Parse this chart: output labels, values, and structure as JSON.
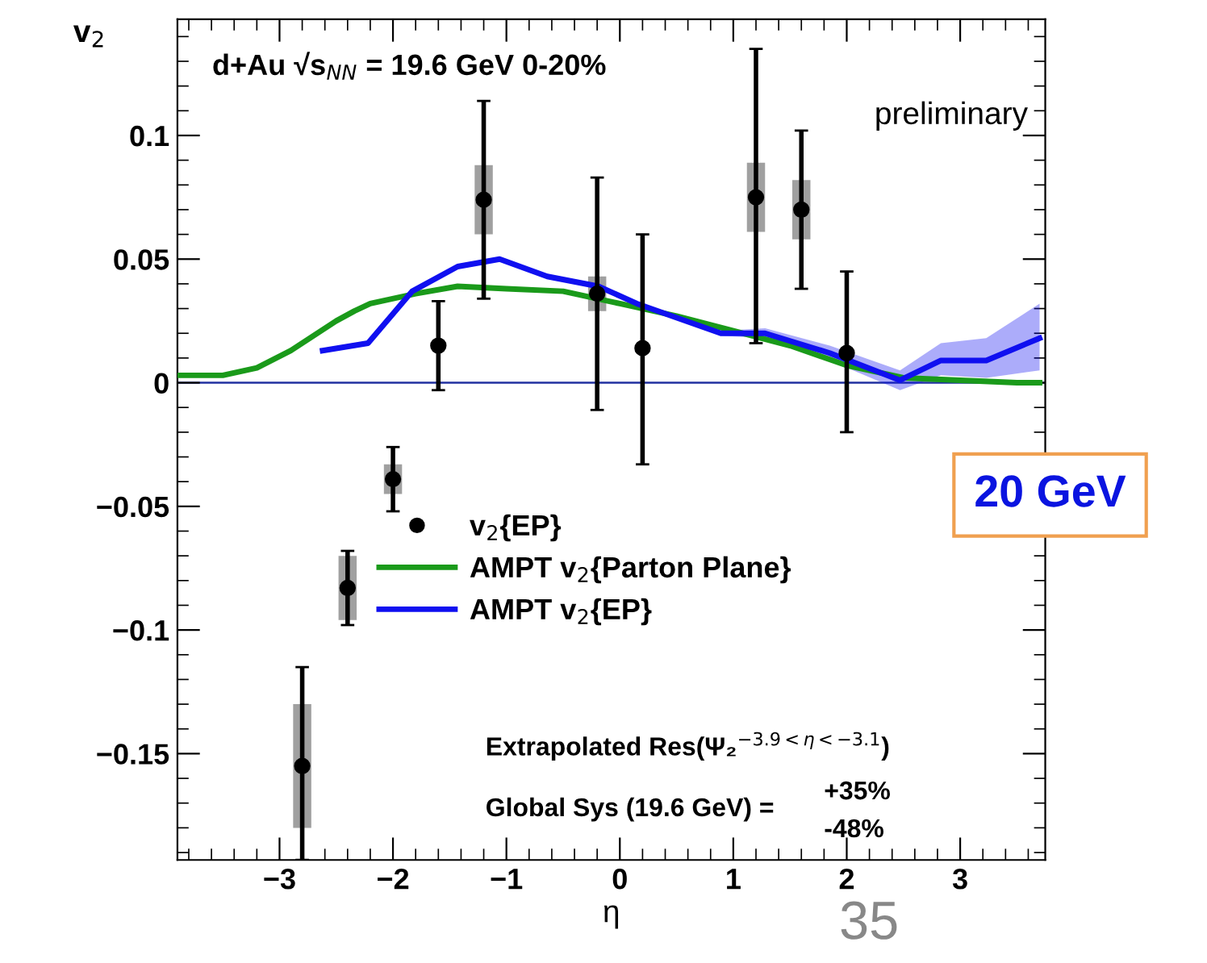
{
  "chart_data": {
    "type": "scatter",
    "title": "d+Au √s$_{NN}$ = 19.6 GeV 0-20%",
    "xlabel": "η",
    "ylabel": "v$_{2}$",
    "xlim": [
      -3.9,
      3.75
    ],
    "ylim": [
      -0.193,
      0.147
    ],
    "xticks": [
      {
        "value": -3,
        "label": "−3"
      },
      {
        "value": -2,
        "label": "−2"
      },
      {
        "value": -1,
        "label": "−1"
      },
      0,
      1,
      2,
      3
    ],
    "yticks": [
      {
        "value": -0.15,
        "label": "−0.15"
      },
      {
        "value": -0.1,
        "label": "−0.1"
      },
      {
        "value": -0.05,
        "label": "−0.05"
      },
      0,
      0.05,
      0.1
    ],
    "series": [
      {
        "type": "bar",
        "color": "#a0a0a0",
        "x": [
          -2.8,
          -2.4,
          -2.0,
          -1.2,
          -0.2,
          1.2,
          1.6
        ],
        "base": [
          -0.18,
          -0.096,
          -0.045,
          0.06,
          0.029,
          0.061,
          0.058
        ],
        "values": [
          0.05,
          0.026,
          0.012,
          0.028,
          0.014,
          0.028,
          0.024
        ]
      },
      {
        "type": "line",
        "name": "AMPT v$_{2}${Parton Plane}",
        "color": "#1a9a1a",
        "x": [
          -3.9,
          -3.5,
          -3.2,
          -2.9,
          -2.5,
          -2.34,
          -2.2,
          -1.8,
          -1.43,
          -1.0,
          -0.5,
          0,
          0.5,
          1.0,
          1.5,
          2.0,
          2.5,
          3.0,
          3.5,
          3.7
        ],
        "values": [
          0.003,
          0.003,
          0.006,
          0.013,
          0.025,
          0.029,
          0.032,
          0.036,
          0.039,
          0.038,
          0.037,
          0.032,
          0.027,
          0.021,
          0.015,
          0.007,
          0.002,
          0.001,
          0.0,
          0.0
        ]
      },
      {
        "type": "line",
        "name": "AMPT v$_{2}${EP}",
        "color": "#1010f0",
        "x": [
          -2.62,
          -2.22,
          -1.83,
          -1.43,
          -1.06,
          -0.64,
          -0.19,
          0.15,
          0.89,
          1.28,
          1.85,
          2.47,
          2.83,
          3.23,
          3.7
        ],
        "values": [
          0.013,
          0.016,
          0.037,
          0.047,
          0.05,
          0.043,
          0.039,
          0.032,
          0.02,
          0.02,
          0.012,
          0.001,
          0.009,
          0.009,
          0.018
        ],
        "lower": [
          0.012,
          0.015,
          0.036,
          0.046,
          0.049,
          0.042,
          0.038,
          0.031,
          0.019,
          0.018,
          0.009,
          -0.003,
          0.003,
          0.002,
          0.005
        ],
        "upper": [
          0.014,
          0.017,
          0.038,
          0.048,
          0.051,
          0.044,
          0.04,
          0.033,
          0.021,
          0.022,
          0.015,
          0.005,
          0.016,
          0.018,
          0.032
        ]
      },
      {
        "name": "v$_{2}${EP}",
        "marker": "circle",
        "color": "#000000",
        "x": [
          -2.8,
          -2.4,
          -2.0,
          -1.6,
          -1.2,
          -0.2,
          0.2,
          1.2,
          1.6,
          2.0
        ],
        "values": [
          -0.155,
          -0.083,
          -0.039,
          0.015,
          0.074,
          0.036,
          0.014,
          0.075,
          0.07,
          0.012
        ],
        "errors": [
          [
            -0.193,
            -0.115
          ],
          [
            -0.098,
            -0.068
          ],
          [
            -0.052,
            -0.026
          ],
          [
            -0.003,
            0.033
          ],
          [
            0.034,
            0.114
          ],
          [
            -0.011,
            0.083
          ],
          [
            -0.033,
            0.06
          ],
          [
            0.016,
            0.135
          ],
          [
            0.038,
            0.102
          ],
          [
            -0.02,
            0.045
          ]
        ]
      }
    ],
    "ref_lines": [
      {
        "axis": "y",
        "value": 0,
        "color": "#2030a0"
      }
    ],
    "legend": "center",
    "grid": false,
    "annotations": [
      "preliminary",
      "20 GeV",
      "Extrapolated Res(Ψ₂$^{−3.9<η<−3.1}$)",
      "Global Sys (19.6 GeV) = ",
      "+35%",
      "-48%",
      "35"
    ]
  }
}
